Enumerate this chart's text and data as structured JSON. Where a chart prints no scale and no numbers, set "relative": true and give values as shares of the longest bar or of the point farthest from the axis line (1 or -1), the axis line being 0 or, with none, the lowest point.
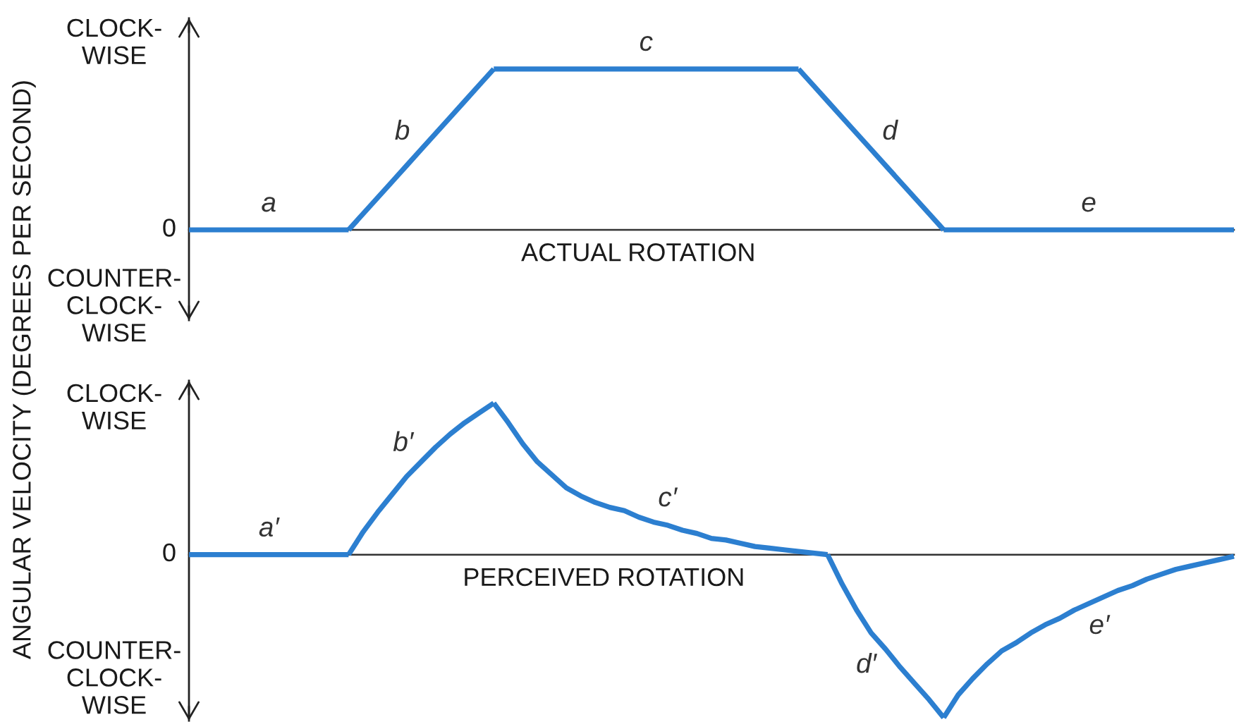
{
  "chart_data": [
    {
      "type": "line",
      "relative": true,
      "xlabel": "ACTUAL ROTATION",
      "ylabel": "ANGULAR VELOCITY (DEGREES PER SECOND)",
      "annotations": [
        "0",
        "CLOCK-\nWISE",
        "COUNTER-\nCLOCK-\nWISE"
      ],
      "categories": [
        null,
        null,
        null,
        null,
        null,
        null,
        null,
        null,
        null,
        null,
        null,
        null,
        null,
        null,
        null,
        null,
        null,
        null,
        null,
        null,
        null,
        null,
        null,
        null,
        null,
        null,
        null,
        null,
        null,
        null,
        null,
        null,
        null,
        null,
        null,
        null,
        null,
        null,
        null,
        null,
        null,
        null,
        null,
        null,
        null,
        null,
        null,
        null,
        null,
        null,
        null,
        null,
        null,
        null,
        null,
        null,
        null,
        null,
        null,
        null,
        null,
        null,
        null,
        null,
        null,
        null,
        null,
        null,
        null,
        null,
        null,
        null,
        null
      ],
      "series": [
        {
          "name": "a",
          "color": "#2c7fd0",
          "values": [
            0,
            0,
            0,
            0,
            0,
            0,
            0,
            0,
            0,
            0,
            0,
            0,
            null,
            null,
            null,
            null,
            null,
            null,
            null,
            null,
            null,
            null,
            null,
            null,
            null,
            null,
            null,
            null,
            null,
            null,
            null,
            null,
            null,
            null,
            null,
            null,
            null,
            null,
            null,
            null,
            null,
            null,
            null,
            null,
            null,
            null,
            null,
            null,
            null,
            null,
            null,
            null,
            null,
            null,
            null,
            null,
            null,
            null,
            null,
            null,
            null,
            null,
            null,
            null,
            null,
            null,
            null,
            null,
            null,
            null,
            null,
            null,
            null
          ]
        },
        {
          "name": "b",
          "color": "#2c7fd0",
          "values": [
            null,
            null,
            null,
            null,
            null,
            null,
            null,
            null,
            null,
            null,
            null,
            0,
            0.1,
            0.2,
            0.3,
            0.4,
            0.5,
            0.6,
            0.7,
            0.8,
            0.9,
            1,
            null,
            null,
            null,
            null,
            null,
            null,
            null,
            null,
            null,
            null,
            null,
            null,
            null,
            null,
            null,
            null,
            null,
            null,
            null,
            null,
            null,
            null,
            null,
            null,
            null,
            null,
            null,
            null,
            null,
            null,
            null,
            null,
            null,
            null,
            null,
            null,
            null,
            null,
            null,
            null,
            null,
            null,
            null,
            null,
            null,
            null,
            null,
            null,
            null,
            null,
            null
          ]
        },
        {
          "name": "c",
          "color": "#2c7fd0",
          "values": [
            null,
            null,
            null,
            null,
            null,
            null,
            null,
            null,
            null,
            null,
            null,
            null,
            null,
            null,
            null,
            null,
            null,
            null,
            null,
            null,
            null,
            1,
            1,
            1,
            1,
            1,
            1,
            1,
            1,
            1,
            1,
            1,
            1,
            1,
            1,
            1,
            1,
            1,
            1,
            1,
            1,
            1,
            1,
            null,
            null,
            null,
            null,
            null,
            null,
            null,
            null,
            null,
            null,
            null,
            null,
            null,
            null,
            null,
            null,
            null,
            null,
            null,
            null,
            null,
            null,
            null,
            null,
            null,
            null,
            null,
            null,
            null,
            null
          ]
        },
        {
          "name": "d",
          "color": "#2c7fd0",
          "values": [
            null,
            null,
            null,
            null,
            null,
            null,
            null,
            null,
            null,
            null,
            null,
            null,
            null,
            null,
            null,
            null,
            null,
            null,
            null,
            null,
            null,
            null,
            null,
            null,
            null,
            null,
            null,
            null,
            null,
            null,
            null,
            null,
            null,
            null,
            null,
            null,
            null,
            null,
            null,
            null,
            null,
            null,
            1,
            0.9,
            0.8,
            0.7,
            0.6,
            0.5,
            0.4,
            0.3,
            0.2,
            0.1,
            0,
            null,
            null,
            null,
            null,
            null,
            null,
            null,
            null,
            null,
            null,
            null,
            null,
            null,
            null,
            null,
            null,
            null,
            null,
            null,
            null
          ]
        },
        {
          "name": "e",
          "color": "#2c7fd0",
          "values": [
            null,
            null,
            null,
            null,
            null,
            null,
            null,
            null,
            null,
            null,
            null,
            null,
            null,
            null,
            null,
            null,
            null,
            null,
            null,
            null,
            null,
            null,
            null,
            null,
            null,
            null,
            null,
            null,
            null,
            null,
            null,
            null,
            null,
            null,
            null,
            null,
            null,
            null,
            null,
            null,
            null,
            null,
            null,
            null,
            null,
            null,
            null,
            null,
            null,
            null,
            null,
            null,
            0,
            0,
            0,
            0,
            0,
            0,
            0,
            0,
            0,
            0,
            0,
            0,
            0,
            0,
            0,
            0,
            0,
            0,
            0,
            0,
            0
          ]
        }
      ]
    },
    {
      "type": "line",
      "relative": true,
      "xlabel": "PERCEIVED ROTATION",
      "annotations": [
        "0",
        "CLOCK-\nWISE",
        "COUNTER-\nCLOCK-\nWISE"
      ],
      "categories": [
        null,
        null,
        null,
        null,
        null,
        null,
        null,
        null,
        null,
        null,
        null,
        null,
        null,
        null,
        null,
        null,
        null,
        null,
        null,
        null,
        null,
        null,
        null,
        null,
        null,
        null,
        null,
        null,
        null,
        null,
        null,
        null,
        null,
        null,
        null,
        null,
        null,
        null,
        null,
        null,
        null,
        null,
        null,
        null,
        null,
        null,
        null,
        null,
        null,
        null,
        null,
        null,
        null,
        null,
        null,
        null,
        null,
        null,
        null,
        null,
        null,
        null,
        null,
        null,
        null,
        null,
        null,
        null,
        null,
        null,
        null,
        null,
        null
      ],
      "series": [
        {
          "name": "a′",
          "color": "#2c7fd0",
          "values": [
            0,
            0,
            0,
            0,
            0,
            0,
            0,
            0,
            0,
            0,
            0,
            0,
            null,
            null,
            null,
            null,
            null,
            null,
            null,
            null,
            null,
            null,
            null,
            null,
            null,
            null,
            null,
            null,
            null,
            null,
            null,
            null,
            null,
            null,
            null,
            null,
            null,
            null,
            null,
            null,
            null,
            null,
            null,
            null,
            null,
            null,
            null,
            null,
            null,
            null,
            null,
            null,
            null,
            null,
            null,
            null,
            null,
            null,
            null,
            null,
            null,
            null,
            null,
            null,
            null,
            null,
            null,
            null,
            null,
            null,
            null,
            null,
            null
          ]
        },
        {
          "name": "b′",
          "color": "#2c7fd0",
          "values": [
            null,
            null,
            null,
            null,
            null,
            null,
            null,
            null,
            null,
            null,
            null,
            0,
            0.14,
            0.26,
            0.37,
            0.48,
            0.57,
            0.66,
            0.74,
            0.81,
            0.87,
            0.93,
            null,
            null,
            null,
            null,
            null,
            null,
            null,
            null,
            null,
            null,
            null,
            null,
            null,
            null,
            null,
            null,
            null,
            null,
            null,
            null,
            null,
            null,
            null,
            null,
            null,
            null,
            null,
            null,
            null,
            null,
            null,
            null,
            null,
            null,
            null,
            null,
            null,
            null,
            null,
            null,
            null,
            null,
            null,
            null,
            null,
            null,
            null,
            null,
            null,
            null,
            null
          ]
        },
        {
          "name": "c′",
          "color": "#2c7fd0",
          "values": [
            null,
            null,
            null,
            null,
            null,
            null,
            null,
            null,
            null,
            null,
            null,
            null,
            null,
            null,
            null,
            null,
            null,
            null,
            null,
            null,
            null,
            0.93,
            0.81,
            0.68,
            0.57,
            0.49,
            0.41,
            0.36,
            0.32,
            0.29,
            0.27,
            0.23,
            0.2,
            0.18,
            0.15,
            0.13,
            0.1,
            0.09,
            0.07,
            0.05,
            0.04,
            0.03,
            0.02,
            0.01,
            0,
            null,
            null,
            null,
            null,
            null,
            null,
            null,
            null,
            null,
            null,
            null,
            null,
            null,
            null,
            null,
            null,
            null,
            null,
            null,
            null,
            null,
            null,
            null,
            null,
            null,
            null,
            null,
            null
          ]
        },
        {
          "name": "d′",
          "color": "#2c7fd0",
          "values": [
            null,
            null,
            null,
            null,
            null,
            null,
            null,
            null,
            null,
            null,
            null,
            null,
            null,
            null,
            null,
            null,
            null,
            null,
            null,
            null,
            null,
            null,
            null,
            null,
            null,
            null,
            null,
            null,
            null,
            null,
            null,
            null,
            null,
            null,
            null,
            null,
            null,
            null,
            null,
            null,
            null,
            null,
            null,
            null,
            0,
            -0.18,
            -0.34,
            -0.48,
            -0.58,
            -0.69,
            -0.79,
            -0.89,
            -1,
            null,
            null,
            null,
            null,
            null,
            null,
            null,
            null,
            null,
            null,
            null,
            null,
            null,
            null,
            null,
            null,
            null,
            null,
            null,
            null
          ]
        },
        {
          "name": "e′",
          "color": "#2c7fd0",
          "values": [
            null,
            null,
            null,
            null,
            null,
            null,
            null,
            null,
            null,
            null,
            null,
            null,
            null,
            null,
            null,
            null,
            null,
            null,
            null,
            null,
            null,
            null,
            null,
            null,
            null,
            null,
            null,
            null,
            null,
            null,
            null,
            null,
            null,
            null,
            null,
            null,
            null,
            null,
            null,
            null,
            null,
            null,
            null,
            null,
            null,
            null,
            null,
            null,
            null,
            null,
            null,
            null,
            -1,
            -0.86,
            -0.76,
            -0.67,
            -0.59,
            -0.54,
            -0.48,
            -0.43,
            -0.39,
            -0.34,
            -0.3,
            -0.26,
            -0.22,
            -0.19,
            -0.15,
            -0.12,
            -0.09,
            -0.07,
            -0.05,
            -0.03,
            -0.01
          ]
        }
      ]
    }
  ]
}
